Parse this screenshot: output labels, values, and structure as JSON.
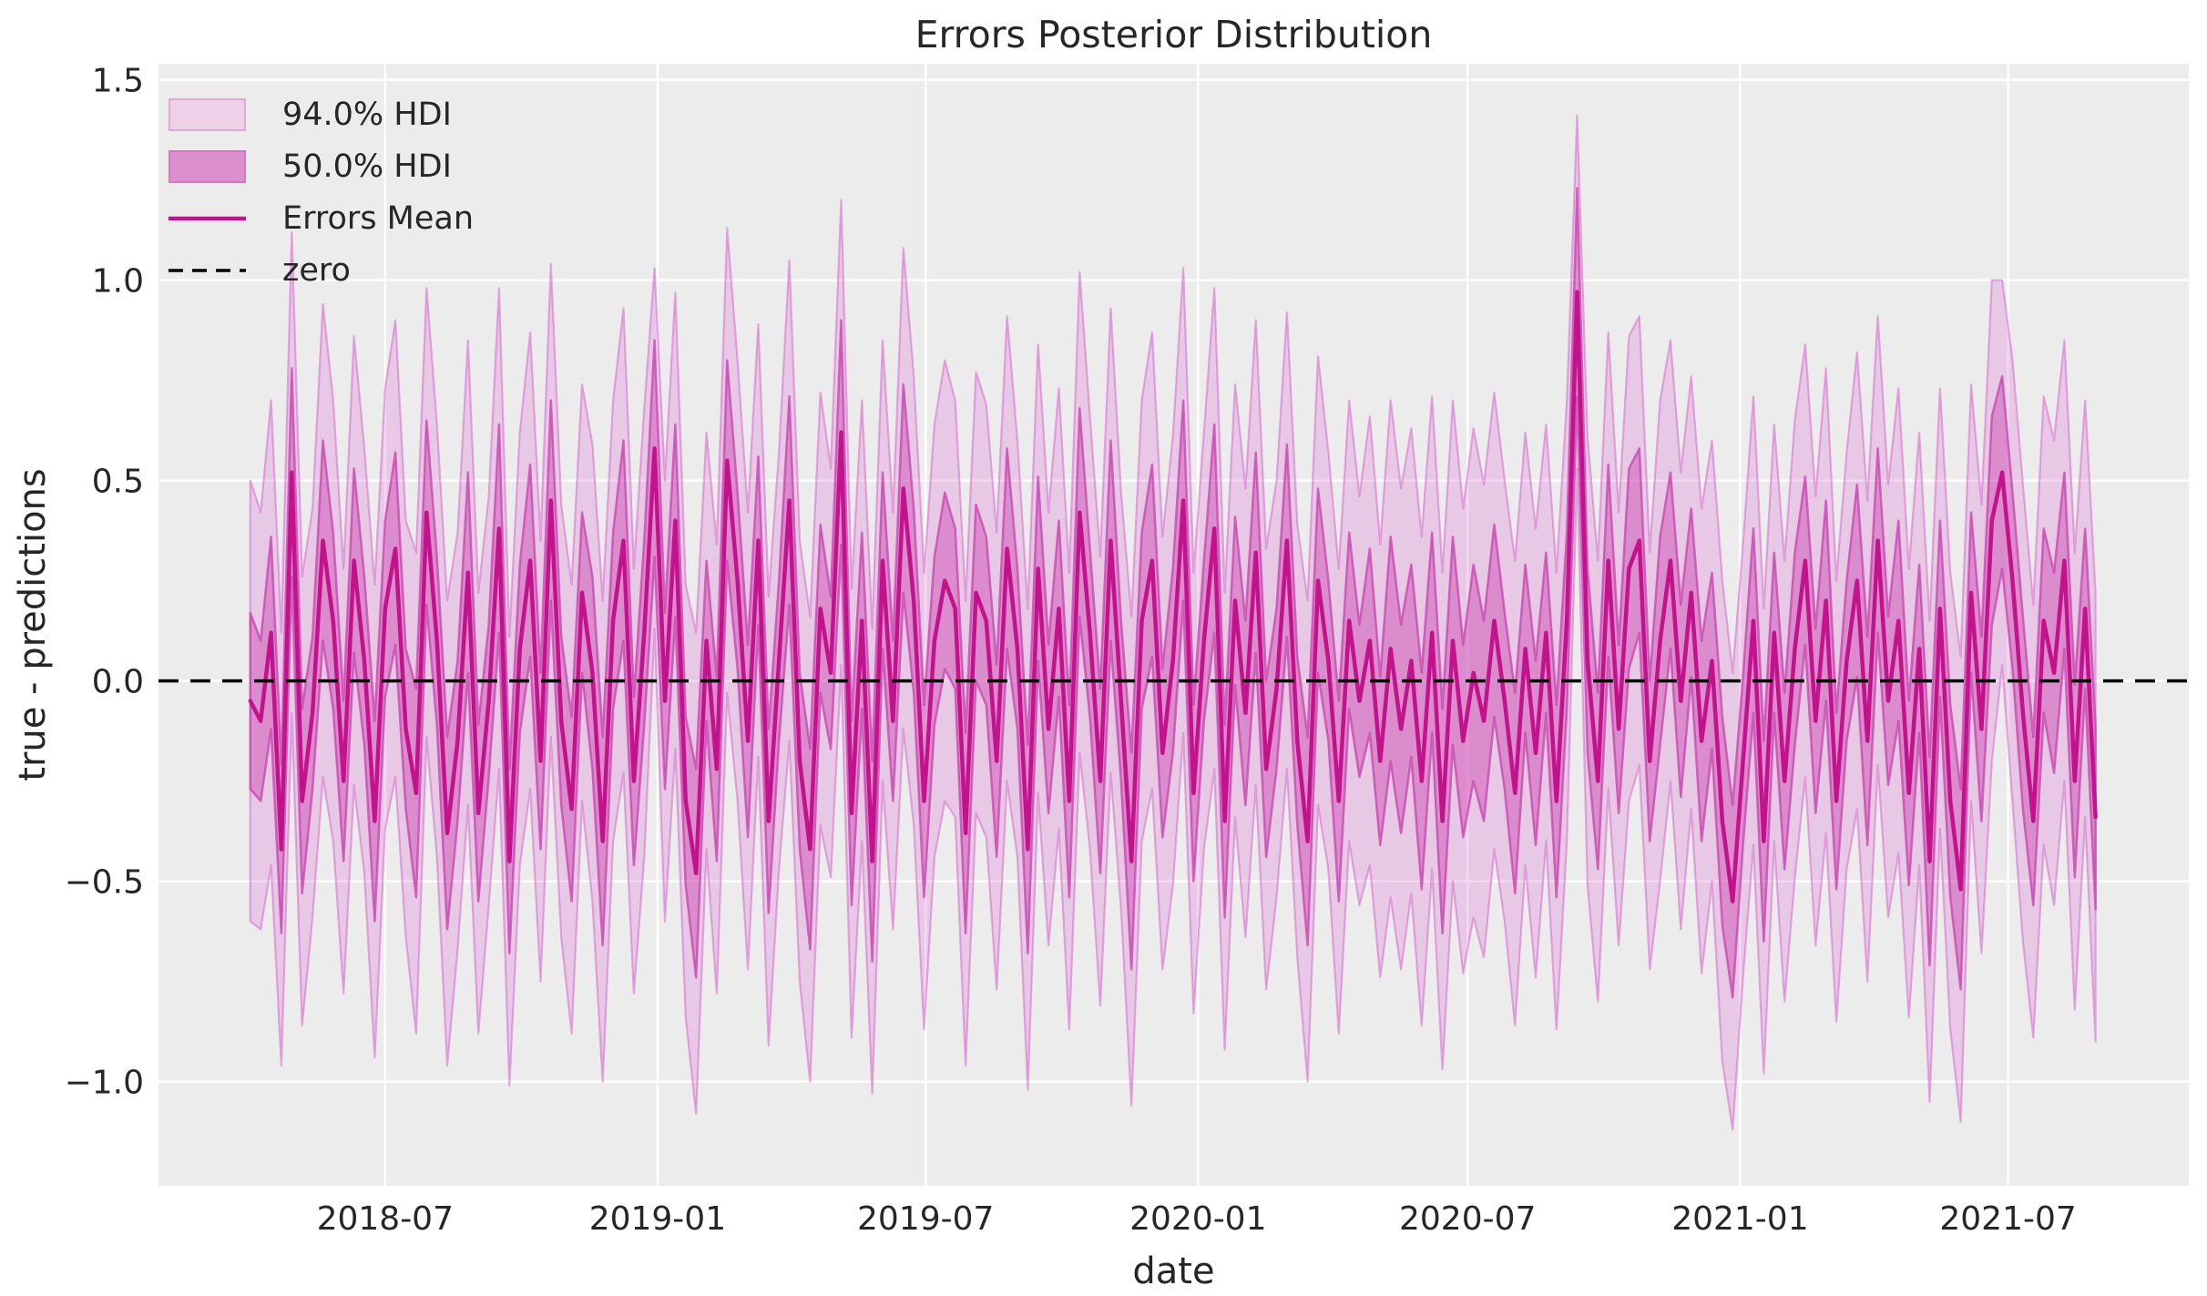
{
  "chart_data": {
    "type": "line",
    "title": "Errors Posterior Distribution",
    "xlabel": "date",
    "ylabel": "true - predictions",
    "xlim": [
      "2018-01-29",
      "2021-10-31"
    ],
    "ylim": [
      -1.26,
      1.54
    ],
    "grid": true,
    "legend": {
      "position": "upper-left",
      "items": [
        {
          "label": "94.0% HDI",
          "type": "patch",
          "fill_key": "legend_band94_fill",
          "edge_key": "legend_band94_edge"
        },
        {
          "label": "50.0% HDI",
          "type": "patch",
          "fill_key": "legend_band50_fill",
          "edge_key": "legend_band50_edge"
        },
        {
          "label": "Errors Mean",
          "type": "line",
          "fill_key": "mean",
          "edge_key": "mean"
        },
        {
          "label": "zero",
          "type": "dashed-line",
          "fill_key": "zero",
          "edge_key": "zero"
        }
      ]
    },
    "xticks": [
      {
        "label": "2018-07",
        "date": "2018-07-01"
      },
      {
        "label": "2019-01",
        "date": "2019-01-01"
      },
      {
        "label": "2019-07",
        "date": "2019-07-01"
      },
      {
        "label": "2020-01",
        "date": "2020-01-01"
      },
      {
        "label": "2020-07",
        "date": "2020-07-01"
      },
      {
        "label": "2021-01",
        "date": "2021-01-01"
      },
      {
        "label": "2021-07",
        "date": "2021-07-01"
      }
    ],
    "yticks": [
      {
        "label": "1.5",
        "value": 1.5
      },
      {
        "label": "1.0",
        "value": 1.0
      },
      {
        "label": "0.5",
        "value": 0.5
      },
      {
        "label": "0.0",
        "value": 0.0
      },
      {
        "label": "−0.5",
        "value": -0.5
      },
      {
        "label": "−1.0",
        "value": -1.0
      }
    ],
    "zero_line_y": 0,
    "colors": {
      "figure_bg": "#FFFFFF",
      "plot_bg": "#ECECEC",
      "grid": "#FFFFFF",
      "text": "#262626",
      "band94_fill": "rgba(218,112,214,0.28)",
      "band94_edge": "rgba(215,105,205,0.55)",
      "band50_fill": "rgba(205,80,180,0.50)",
      "band50_edge": "rgba(200,70,175,0.78)",
      "mean": "#C2138C",
      "zero": "#000000",
      "legend_band94_fill": "#EFD0E9",
      "legend_band94_edge": "#DFA8D6",
      "legend_band50_fill": "#DE8FCE",
      "legend_band50_edge": "#D278C0"
    },
    "series": {
      "name": "Errors",
      "frequency": "weekly",
      "start_date": "2018-04-01",
      "freq_days": 7,
      "n": 179,
      "mean": [
        -0.05,
        -0.1,
        0.12,
        -0.42,
        0.52,
        -0.3,
        -0.08,
        0.35,
        0.15,
        -0.25,
        0.3,
        0.05,
        -0.35,
        0.18,
        0.33,
        -0.12,
        -0.28,
        0.42,
        0.1,
        -0.38,
        -0.15,
        0.27,
        -0.33,
        -0.05,
        0.38,
        -0.45,
        0.08,
        0.3,
        -0.2,
        0.45,
        -0.1,
        -0.32,
        0.22,
        0.02,
        -0.4,
        0.15,
        0.35,
        -0.25,
        0.12,
        0.58,
        -0.05,
        0.4,
        -0.3,
        -0.48,
        0.1,
        -0.22,
        0.55,
        0.25,
        -0.15,
        0.35,
        -0.35,
        0.05,
        0.45,
        -0.2,
        -0.42,
        0.18,
        0.02,
        0.62,
        -0.33,
        0.15,
        -0.45,
        0.3,
        -0.1,
        0.48,
        0.2,
        -0.3,
        0.1,
        0.25,
        0.18,
        -0.38,
        0.22,
        0.15,
        -0.2,
        0.33,
        0.08,
        -0.42,
        0.28,
        -0.12,
        0.18,
        -0.3,
        0.42,
        0.12,
        -0.25,
        0.35,
        -0.05,
        -0.45,
        0.15,
        0.3,
        -0.18,
        0.05,
        0.45,
        -0.28,
        0.1,
        0.38,
        -0.35,
        0.2,
        -0.08,
        0.32,
        -0.22,
        -0.02,
        0.35,
        -0.15,
        -0.4,
        0.25,
        0.05,
        -0.3,
        0.15,
        -0.05,
        0.1,
        -0.2,
        0.08,
        -0.12,
        0.05,
        -0.25,
        0.12,
        -0.35,
        0.1,
        -0.15,
        0.02,
        -0.1,
        0.15,
        -0.05,
        -0.28,
        0.08,
        -0.18,
        0.12,
        -0.3,
        0.15,
        0.97,
        0.05,
        -0.25,
        0.3,
        -0.12,
        0.28,
        0.35,
        -0.2,
        0.1,
        0.3,
        -0.05,
        0.22,
        -0.15,
        0.05,
        -0.35,
        -0.55,
        -0.2,
        0.15,
        -0.4,
        0.12,
        -0.25,
        0.08,
        0.3,
        -0.1,
        0.2,
        -0.3,
        0.05,
        0.25,
        -0.15,
        0.35,
        -0.05,
        0.15,
        -0.28,
        0.08,
        -0.45,
        0.18,
        -0.3,
        -0.52,
        0.22,
        -0.12,
        0.4,
        0.52,
        0.25,
        -0.08,
        -0.35,
        0.15,
        0.02,
        0.3,
        -0.25,
        0.18,
        -0.34
      ],
      "hdi50_halfwidth": [
        0.22,
        0.2,
        0.24,
        0.21,
        0.26,
        0.23,
        0.19,
        0.25,
        0.22,
        0.2,
        0.23,
        0.21,
        0.25,
        0.22,
        0.24,
        0.2,
        0.26,
        0.23,
        0.21,
        0.24,
        0.2,
        0.25,
        0.22,
        0.19,
        0.26,
        0.23,
        0.21,
        0.24,
        0.22,
        0.25,
        0.21,
        0.23,
        0.2,
        0.24,
        0.26,
        0.22,
        0.25,
        0.21,
        0.23,
        0.27,
        0.22,
        0.24,
        0.21,
        0.26,
        0.2,
        0.23,
        0.25,
        0.22,
        0.24,
        0.21,
        0.23,
        0.2,
        0.26,
        0.22,
        0.25,
        0.21,
        0.19,
        0.28,
        0.23,
        0.22,
        0.25,
        0.22,
        0.2,
        0.26,
        0.23,
        0.24,
        0.21,
        0.22,
        0.2,
        0.25,
        0.22,
        0.21,
        0.24,
        0.25,
        0.2,
        0.26,
        0.23,
        0.21,
        0.22,
        0.24,
        0.26,
        0.21,
        0.23,
        0.25,
        0.2,
        0.27,
        0.22,
        0.24,
        0.21,
        0.23,
        0.25,
        0.22,
        0.2,
        0.26,
        0.24,
        0.21,
        0.23,
        0.25,
        0.22,
        0.2,
        0.24,
        0.21,
        0.26,
        0.23,
        0.2,
        0.25,
        0.22,
        0.19,
        0.23,
        0.21,
        0.28,
        0.26,
        0.24,
        0.27,
        0.25,
        0.28,
        0.26,
        0.24,
        0.27,
        0.25,
        0.24,
        0.22,
        0.25,
        0.21,
        0.23,
        0.2,
        0.24,
        0.22,
        0.26,
        0.23,
        0.22,
        0.24,
        0.21,
        0.25,
        0.23,
        0.2,
        0.26,
        0.22,
        0.24,
        0.21,
        0.25,
        0.22,
        0.26,
        0.24,
        0.21,
        0.23,
        0.25,
        0.2,
        0.22,
        0.24,
        0.21,
        0.23,
        0.25,
        0.22,
        0.2,
        0.24,
        0.26,
        0.23,
        0.21,
        0.25,
        0.23,
        0.21,
        0.26,
        0.22,
        0.24,
        0.25,
        0.2,
        0.23,
        0.26,
        0.24,
        0.22,
        0.24,
        0.21,
        0.23,
        0.25,
        0.22,
        0.24,
        0.2,
        0.23
      ],
      "hdi94_halfwidth": [
        0.55,
        0.52,
        0.58,
        0.54,
        0.6,
        0.56,
        0.51,
        0.59,
        0.55,
        0.53,
        0.56,
        0.53,
        0.59,
        0.55,
        0.57,
        0.52,
        0.6,
        0.56,
        0.54,
        0.58,
        0.52,
        0.58,
        0.55,
        0.51,
        0.6,
        0.56,
        0.54,
        0.57,
        0.55,
        0.59,
        0.54,
        0.56,
        0.52,
        0.57,
        0.6,
        0.55,
        0.58,
        0.53,
        0.56,
        0.45,
        0.55,
        0.57,
        0.54,
        0.6,
        0.52,
        0.56,
        0.58,
        0.55,
        0.57,
        0.54,
        0.56,
        0.52,
        0.6,
        0.55,
        0.58,
        0.54,
        0.51,
        0.58,
        0.56,
        0.55,
        0.58,
        0.55,
        0.52,
        0.6,
        0.56,
        0.57,
        0.54,
        0.55,
        0.52,
        0.58,
        0.55,
        0.54,
        0.57,
        0.58,
        0.52,
        0.6,
        0.56,
        0.54,
        0.55,
        0.57,
        0.6,
        0.54,
        0.56,
        0.58,
        0.52,
        0.61,
        0.55,
        0.57,
        0.54,
        0.56,
        0.58,
        0.55,
        0.52,
        0.6,
        0.57,
        0.54,
        0.56,
        0.58,
        0.55,
        0.52,
        0.57,
        0.54,
        0.6,
        0.56,
        0.52,
        0.58,
        0.55,
        0.51,
        0.56,
        0.54,
        0.62,
        0.6,
        0.58,
        0.61,
        0.59,
        0.62,
        0.6,
        0.58,
        0.61,
        0.59,
        0.57,
        0.55,
        0.58,
        0.54,
        0.56,
        0.52,
        0.57,
        0.55,
        0.44,
        0.56,
        0.55,
        0.57,
        0.54,
        0.58,
        0.56,
        0.52,
        0.6,
        0.55,
        0.57,
        0.54,
        0.58,
        0.55,
        0.6,
        0.57,
        0.54,
        0.56,
        0.58,
        0.52,
        0.55,
        0.57,
        0.54,
        0.56,
        0.58,
        0.55,
        0.52,
        0.57,
        0.6,
        0.56,
        0.54,
        0.58,
        0.56,
        0.54,
        0.6,
        0.55,
        0.57,
        0.58,
        0.52,
        0.56,
        0.6,
        0.48,
        0.55,
        0.57,
        0.54,
        0.56,
        0.58,
        0.55,
        0.57,
        0.52,
        0.56
      ]
    }
  }
}
